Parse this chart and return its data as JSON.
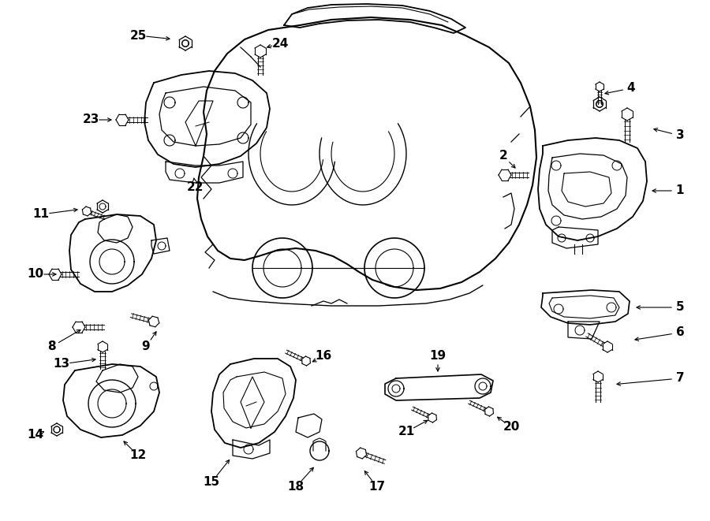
{
  "background_color": "#ffffff",
  "line_color": "#000000",
  "figsize": [
    9.0,
    6.61
  ],
  "dpi": 100,
  "lw_main": 1.2,
  "lw_thin": 0.7,
  "lw_bolt": 1.0
}
